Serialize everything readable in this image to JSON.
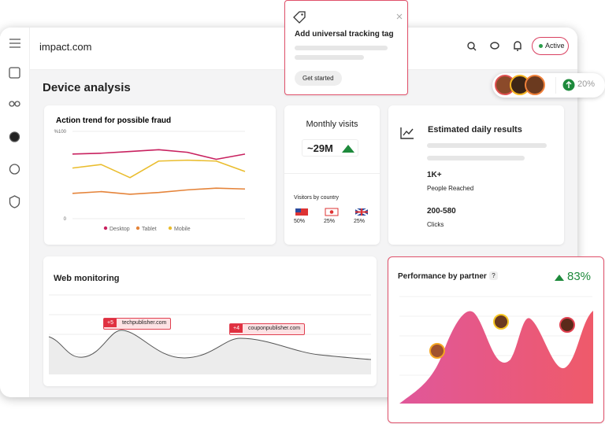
{
  "header": {
    "logo": "impact.com",
    "status": "Active"
  },
  "page_title": "Device analysis",
  "popup": {
    "title": "Add universal tracking tag",
    "button": "Get started"
  },
  "avatars_badge": {
    "value": "20%"
  },
  "fraud_card": {
    "chart_data": {
      "type": "line",
      "title": "Action trend for possible fraud",
      "ylim": [
        0,
        100
      ],
      "yticks": [
        {
          "value": 100,
          "label": "%100"
        },
        0
      ],
      "series": [
        {
          "name": "Desktop",
          "color": "#c8215f",
          "values": [
            74,
            75,
            77,
            79,
            76,
            68,
            74
          ]
        },
        {
          "name": "Tablet",
          "color": "#e5843a",
          "values": [
            29,
            31,
            28,
            30,
            33,
            35,
            34
          ]
        },
        {
          "name": "Mobile",
          "color": "#eabd2e",
          "values": [
            58,
            62,
            47,
            66,
            67,
            66,
            54
          ]
        }
      ]
    }
  },
  "monthly_visits": {
    "title": "Monthly visits",
    "value": "~29M",
    "country_title": "Visitors by country",
    "countries": [
      {
        "share": "50%"
      },
      {
        "share": "25%"
      },
      {
        "share": "25%"
      }
    ]
  },
  "estimated": {
    "title": "Estimated daily results",
    "metrics": [
      {
        "value": "1K+",
        "label": "People Reached"
      },
      {
        "value": "200-580",
        "label": "Clicks"
      }
    ]
  },
  "web_monitoring": {
    "title": "Web monitoring",
    "tags": [
      {
        "count": "+5",
        "name": "techpublisher.com"
      },
      {
        "count": "+4",
        "name": "couponpublisher.com"
      }
    ]
  },
  "performance": {
    "title": "Performance by partner",
    "help": "?",
    "change": "83%"
  }
}
